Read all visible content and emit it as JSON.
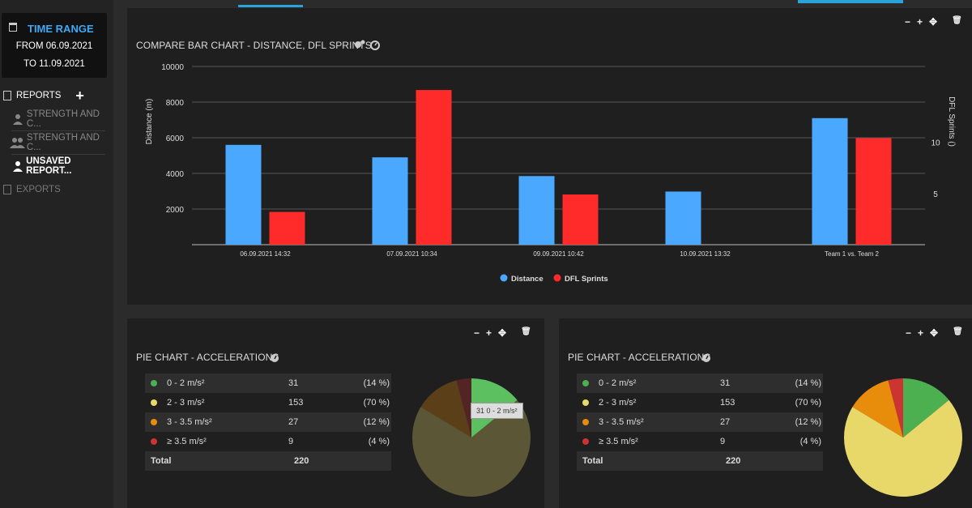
{
  "sidebar": {
    "time_range": {
      "title": "TIME RANGE",
      "from": "FROM 06.09.2021",
      "to": "TO 11.09.2021"
    },
    "reports": {
      "label": "REPORTS",
      "add": "+"
    },
    "items": [
      {
        "label": "STRENGTH AND C...",
        "icon": "user-icon"
      },
      {
        "label": "STRENGTH AND C...",
        "icon": "users-icon"
      },
      {
        "label": "UNSAVED REPORT...",
        "icon": "user-icon"
      }
    ],
    "exports": {
      "label": "EXPORTS"
    }
  },
  "bar_panel": {
    "title": "COMPARE BAR CHART - DISTANCE, DFL SPRINTS",
    "controls": [
      "−",
      "+",
      "✥",
      "🗑"
    ]
  },
  "pie_panels": [
    {
      "title": "PIE CHART - ACCELERATIONS",
      "rows": [
        {
          "label": "0 - 2 m/s²",
          "count": "31",
          "pct": "(14 %)",
          "color": "#4caf50"
        },
        {
          "label": "2 - 3 m/s²",
          "count": "153",
          "pct": "(70 %)",
          "color": "#e8d86a"
        },
        {
          "label": "3 - 3.5 m/s²",
          "count": "27",
          "pct": "(12 %)",
          "color": "#e88c0c"
        },
        {
          "label": "≥ 3.5 m/s²",
          "count": "9",
          "pct": "(4 %)",
          "color": "#cc3333"
        }
      ],
      "total_label": "Total",
      "total_value": "220",
      "tooltip": "31 0 - 2 m/s²"
    },
    {
      "title": "PIE CHART - ACCELERATIONS",
      "rows": [
        {
          "label": "0 - 2 m/s²",
          "count": "31",
          "pct": "(14 %)",
          "color": "#4caf50"
        },
        {
          "label": "2 - 3 m/s²",
          "count": "153",
          "pct": "(70 %)",
          "color": "#e8d86a"
        },
        {
          "label": "3 - 3.5 m/s²",
          "count": "27",
          "pct": "(12 %)",
          "color": "#e88c0c"
        },
        {
          "label": "≥ 3.5 m/s²",
          "count": "9",
          "pct": "(4 %)",
          "color": "#cc3333"
        }
      ],
      "total_label": "Total",
      "total_value": "220"
    }
  ],
  "chart_data": [
    {
      "type": "bar",
      "title": "COMPARE BAR CHART - DISTANCE, DFL SPRINTS",
      "categories": [
        "06.09.2021 14:32",
        "07.09.2021 10:34",
        "09.09.2021 10:42",
        "10.09.2021 13:32",
        "Team 1 vs. Team 2"
      ],
      "series": [
        {
          "name": "Distance",
          "axis": "left",
          "color": "#4aa8ff",
          "values": [
            5600,
            4900,
            3850,
            2980,
            7100
          ]
        },
        {
          "name": "DFL Sprints",
          "axis": "right",
          "color": "#ff2a2a",
          "values": [
            3.2,
            15.1,
            4.9,
            0,
            10.4
          ]
        }
      ],
      "ylabel": "Distance (m)",
      "ylabel_right": "DFL Sprints ()",
      "ylim": [
        0,
        10000
      ],
      "y_ticks": [
        2000,
        4000,
        6000,
        8000,
        10000
      ],
      "ylim_right": [
        0,
        17.4
      ],
      "y_ticks_right": [
        5,
        10
      ],
      "legend": "bottom-center",
      "grid": true
    },
    {
      "type": "pie",
      "labels": [
        "0 - 2 m/s²",
        "2 - 3 m/s²",
        "3 - 3.5 m/s²",
        "≥ 3.5 m/s²"
      ],
      "values": [
        31,
        153,
        27,
        9
      ],
      "colors": [
        "#4caf50",
        "#e8d86a",
        "#e88c0c",
        "#cc3333"
      ]
    },
    {
      "type": "pie",
      "labels": [
        "0 - 2 m/s²",
        "2 - 3 m/s²",
        "3 - 3.5 m/s²",
        "≥ 3.5 m/s²"
      ],
      "values": [
        31,
        153,
        27,
        9
      ],
      "colors": [
        "#4caf50",
        "#e8d86a",
        "#e88c0c",
        "#cc3333"
      ]
    }
  ]
}
